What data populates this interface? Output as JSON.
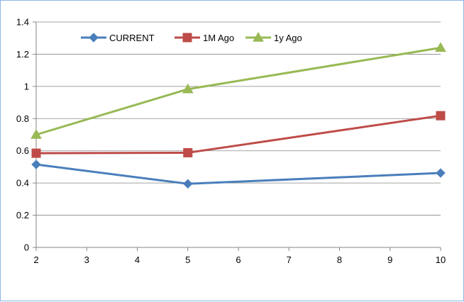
{
  "chart_data": {
    "type": "line",
    "title": "",
    "xlabel": "",
    "ylabel": "",
    "x": [
      2,
      5,
      10
    ],
    "xlim": [
      2,
      10
    ],
    "xticks": [
      2,
      3,
      4,
      5,
      6,
      7,
      8,
      9,
      10
    ],
    "ylim": [
      0,
      1.4
    ],
    "yticks": [
      0,
      0.2,
      0.4,
      0.6,
      0.8,
      1,
      1.2,
      1.4
    ],
    "grid": "horizontal",
    "legend_position": "top",
    "series": [
      {
        "name": "CURRENT",
        "values": [
          0.515,
          0.395,
          0.462
        ],
        "color": "#4a7ebb",
        "marker": "diamond"
      },
      {
        "name": "1M Ago",
        "values": [
          0.585,
          0.588,
          0.818
        ],
        "color": "#be4b48",
        "marker": "square"
      },
      {
        "name": "1y Ago",
        "values": [
          0.7,
          0.983,
          1.24
        ],
        "color": "#98b954",
        "marker": "triangle"
      }
    ]
  }
}
